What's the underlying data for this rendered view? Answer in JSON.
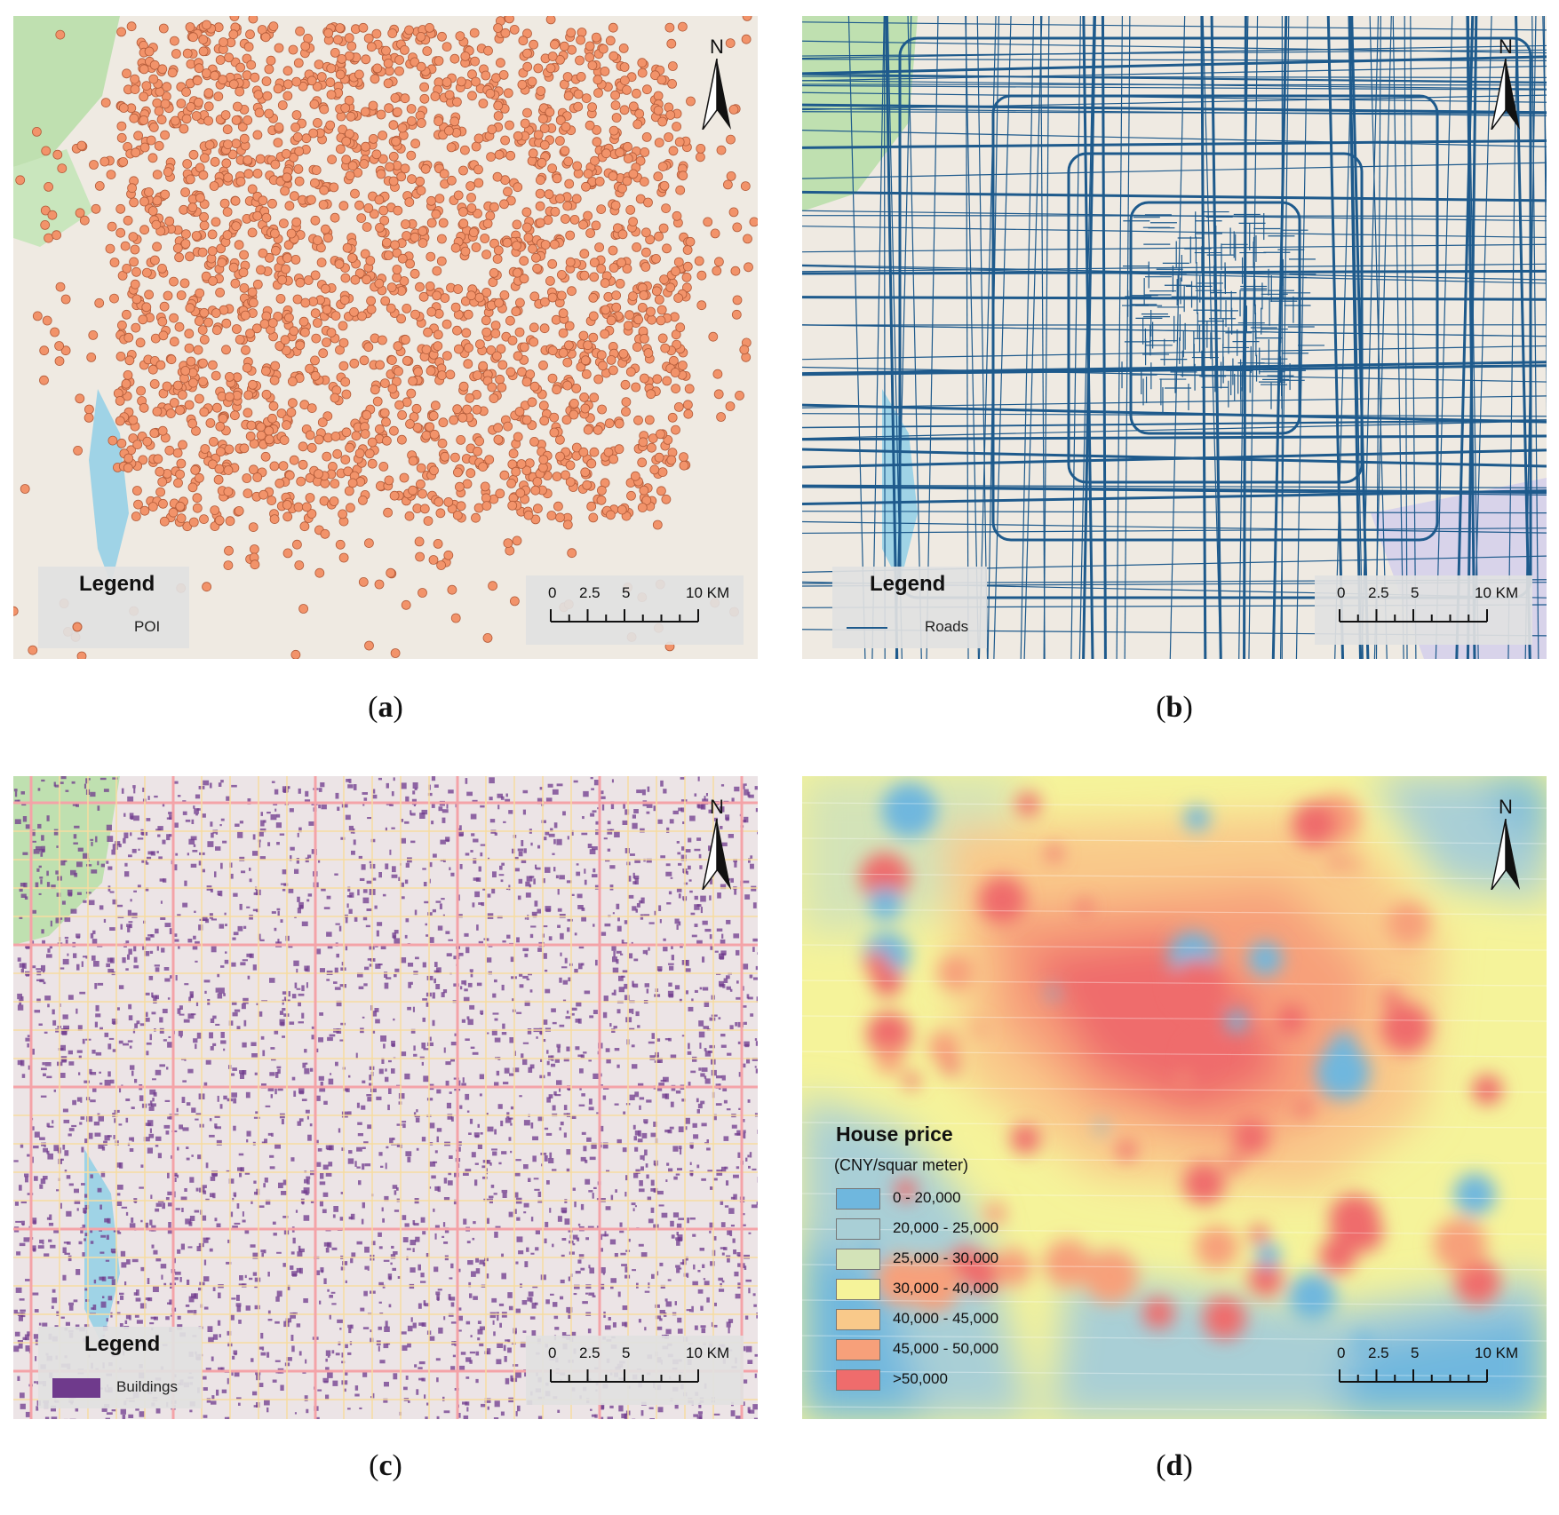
{
  "captions": {
    "a": "a",
    "b": "b",
    "c": "c",
    "d": "d"
  },
  "north_label": "N",
  "scale_ticks": [
    "0",
    "2.5",
    "5",
    "10 KM"
  ],
  "panel_a": {
    "legend_title": "Legend",
    "legend_item": "POI",
    "symbol_color": "#f2936a"
  },
  "panel_b": {
    "legend_title": "Legend",
    "legend_item": "Roads",
    "symbol_color": "#1e5a8c"
  },
  "panel_c": {
    "legend_title": "Legend",
    "legend_item": "Buildings",
    "symbol_color": "#6f3a8c"
  },
  "panel_d": {
    "legend_title": "House price",
    "legend_unit": "(CNY/squar meter)",
    "classes": [
      {
        "label": "0 - 20,000",
        "color": "#6fb7de"
      },
      {
        "label": "20,000 - 25,000",
        "color": "#a9cfd6"
      },
      {
        "label": "25,000 - 30,000",
        "color": "#d3e3b8"
      },
      {
        "label": "30,000 - 40,000",
        "color": "#f5f39a"
      },
      {
        "label": "40,000 - 45,000",
        "color": "#f9c98a"
      },
      {
        "label": "45,000 - 50,000",
        "color": "#f7a07a"
      },
      {
        "label": ">50,000",
        "color": "#ef6c6c"
      }
    ]
  }
}
